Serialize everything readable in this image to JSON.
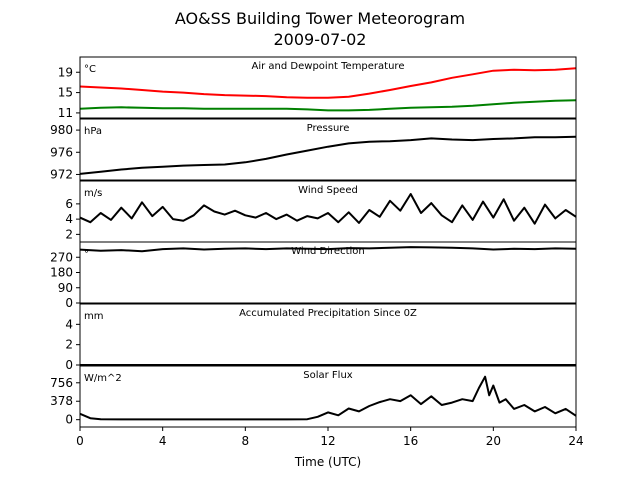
{
  "figure": {
    "title_line1": "AO&SS Building Tower Meteorogram",
    "title_line2": "2009-07-02"
  },
  "chart_data": {
    "type": "line",
    "x_axis": {
      "label": "Time (UTC)",
      "range": [
        0,
        24
      ],
      "ticks": [
        0,
        4,
        8,
        12,
        16,
        20,
        24
      ],
      "tick_labels": [
        "0",
        "4",
        "8",
        "12",
        "16",
        "20",
        "24"
      ]
    },
    "panels": [
      {
        "key": "temp",
        "title": "Air and Dewpoint Temperature",
        "unit": "°C",
        "ylim": [
          10,
          22
        ],
        "yticks": [
          11,
          15,
          19
        ],
        "ytick_labels": [
          "11",
          "15",
          "19"
        ],
        "series": [
          {
            "color": "#ff0000",
            "x": [
              0,
              1,
              2,
              3,
              4,
              5,
              6,
              7,
              8,
              9,
              10,
              11,
              12,
              13,
              14,
              15,
              16,
              17,
              18,
              19,
              20,
              21,
              22,
              23,
              24
            ],
            "y": [
              16.2,
              16.0,
              15.8,
              15.5,
              15.2,
              15.0,
              14.7,
              14.5,
              14.4,
              14.3,
              14.1,
              14.0,
              14.0,
              14.2,
              14.8,
              15.5,
              16.3,
              17.0,
              17.9,
              18.6,
              19.3,
              19.5,
              19.4,
              19.5,
              19.8
            ]
          },
          {
            "color": "#008000",
            "x": [
              0,
              1,
              2,
              3,
              4,
              5,
              6,
              7,
              8,
              9,
              10,
              11,
              12,
              13,
              14,
              15,
              16,
              17,
              18,
              19,
              20,
              21,
              22,
              23,
              24
            ],
            "y": [
              11.8,
              12.0,
              12.1,
              12.0,
              11.9,
              11.9,
              11.8,
              11.8,
              11.8,
              11.8,
              11.8,
              11.7,
              11.5,
              11.5,
              11.6,
              11.8,
              12.0,
              12.1,
              12.2,
              12.4,
              12.7,
              13.0,
              13.2,
              13.4,
              13.5
            ]
          }
        ]
      },
      {
        "key": "pressure",
        "title": "Pressure",
        "unit": "hPa",
        "ylim": [
          971,
          982
        ],
        "yticks": [
          972,
          976,
          980
        ],
        "ytick_labels": [
          "972",
          "976",
          "980"
        ],
        "series": [
          {
            "color": "#000000",
            "x": [
              0,
              1,
              2,
              3,
              4,
              5,
              6,
              7,
              8,
              9,
              10,
              11,
              12,
              13,
              14,
              15,
              16,
              17,
              18,
              19,
              20,
              21,
              22,
              23,
              24
            ],
            "y": [
              972.1,
              972.5,
              972.9,
              973.2,
              973.4,
              973.6,
              973.7,
              973.8,
              974.2,
              974.8,
              975.6,
              976.3,
              977.0,
              977.6,
              977.9,
              978.0,
              978.2,
              978.5,
              978.3,
              978.2,
              978.4,
              978.5,
              978.7,
              978.7,
              978.8
            ]
          }
        ]
      },
      {
        "key": "wind_speed",
        "title": "Wind Speed",
        "unit": "m/s",
        "ylim": [
          1,
          9
        ],
        "yticks": [
          2,
          4,
          6
        ],
        "ytick_labels": [
          "2",
          "4",
          "6"
        ],
        "series": [
          {
            "color": "#000000",
            "x": [
              0,
              0.5,
              1,
              1.5,
              2,
              2.5,
              3,
              3.5,
              4,
              4.5,
              5,
              5.5,
              6,
              6.5,
              7,
              7.5,
              8,
              8.5,
              9,
              9.5,
              10,
              10.5,
              11,
              11.5,
              12,
              12.5,
              13,
              13.5,
              14,
              14.5,
              15,
              15.5,
              16,
              16.5,
              17,
              17.5,
              18,
              18.5,
              19,
              19.5,
              20,
              20.5,
              21,
              21.5,
              22,
              22.5,
              23,
              23.5,
              24
            ],
            "y": [
              4.2,
              3.6,
              4.8,
              3.9,
              5.5,
              4.1,
              6.2,
              4.4,
              5.6,
              4.0,
              3.8,
              4.5,
              5.8,
              5.0,
              4.6,
              5.1,
              4.5,
              4.2,
              4.8,
              4.0,
              4.6,
              3.8,
              4.4,
              4.1,
              4.8,
              3.6,
              4.9,
              3.5,
              5.2,
              4.3,
              6.4,
              5.1,
              7.3,
              4.8,
              6.1,
              4.5,
              3.6,
              5.8,
              3.9,
              6.3,
              4.2,
              6.6,
              3.8,
              5.5,
              3.4,
              5.9,
              4.1,
              5.2,
              4.3
            ]
          }
        ]
      },
      {
        "key": "wind_dir",
        "title": "Wind Direction",
        "unit": "°",
        "ylim": [
          0,
          360
        ],
        "yticks": [
          0,
          90,
          180,
          270
        ],
        "ytick_labels": [
          "0",
          "90",
          "180",
          "270"
        ],
        "series": [
          {
            "color": "#000000",
            "x": [
              0,
              1,
              2,
              3,
              4,
              5,
              6,
              7,
              8,
              9,
              10,
              11,
              12,
              13,
              14,
              15,
              16,
              17,
              18,
              19,
              20,
              21,
              22,
              23,
              24
            ],
            "y": [
              315,
              308,
              312,
              305,
              318,
              322,
              316,
              320,
              322,
              318,
              322,
              320,
              318,
              324,
              322,
              326,
              330,
              328,
              326,
              322,
              316,
              320,
              318,
              322,
              320
            ]
          }
        ]
      },
      {
        "key": "precip",
        "title": "Accumulated Precipitation Since 0Z",
        "unit": "mm",
        "ylim": [
          0,
          6
        ],
        "yticks": [
          0,
          2,
          4
        ],
        "ytick_labels": [
          "0",
          "2",
          "4"
        ],
        "series": [
          {
            "color": "#000000",
            "x": [
              0,
              24
            ],
            "y": [
              0,
              0
            ]
          }
        ]
      },
      {
        "key": "solar",
        "title": "Solar Flux",
        "unit": "W/m^2",
        "ylim": [
          -150,
          1100
        ],
        "yticks": [
          0,
          378,
          756
        ],
        "ytick_labels": [
          "0",
          "378",
          "756"
        ],
        "series": [
          {
            "color": "#000000",
            "x": [
              0,
              0.5,
              1,
              2,
              4,
              6,
              8,
              10,
              11,
              11.5,
              12,
              12.5,
              13,
              13.5,
              14,
              14.5,
              15,
              15.5,
              16,
              16.5,
              17,
              17.5,
              18,
              18.5,
              19,
              19.3,
              19.6,
              19.8,
              20,
              20.3,
              20.6,
              21,
              21.5,
              22,
              22.5,
              23,
              23.5,
              24
            ],
            "y": [
              120,
              30,
              10,
              5,
              5,
              5,
              5,
              5,
              10,
              60,
              150,
              90,
              230,
              170,
              280,
              360,
              420,
              380,
              500,
              320,
              480,
              300,
              350,
              420,
              380,
              650,
              880,
              500,
              700,
              350,
              420,
              220,
              300,
              170,
              260,
              130,
              220,
              80
            ]
          }
        ]
      }
    ]
  }
}
